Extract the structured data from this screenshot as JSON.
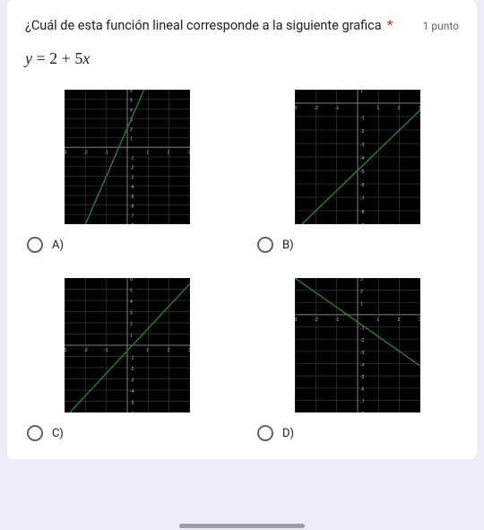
{
  "question": {
    "text": "¿Cuál de esta función lineal corresponde a la siguiente grafica",
    "required_marker": "*",
    "points_label": "1 punto",
    "equation_html": "y = 2 + 5x"
  },
  "graph_style": {
    "width": 140,
    "height": 150,
    "bg": "#000000",
    "grid_major": "#333333",
    "grid_minor": "#1f1f1f",
    "axis": "#808080",
    "label": "#bfbfbf",
    "line": "#2e7d32",
    "line_width": 1.4,
    "x_range": [
      -3,
      3
    ],
    "y_range_span": 10
  },
  "options": [
    {
      "key": "A",
      "label": "A)",
      "chart": {
        "type": "line",
        "x_range": [
          -3,
          3
        ],
        "y_range": [
          -8,
          6
        ],
        "y_axis_side": "center",
        "x_axis_pos": 0,
        "line_points": [
          [
            -3,
            -13
          ],
          [
            3,
            17
          ]
        ],
        "y_intercept": 2,
        "slope": 5
      }
    },
    {
      "key": "B",
      "label": "B)",
      "chart": {
        "type": "line",
        "x_range": [
          -3,
          3
        ],
        "y_range": [
          -9,
          1
        ],
        "y_axis_side": "center",
        "x_axis_pos": 0,
        "line_points": [
          [
            -3,
            -9.5
          ],
          [
            3,
            -0.5
          ]
        ],
        "y_intercept": -5,
        "slope": 1.5
      }
    },
    {
      "key": "C",
      "label": "C)",
      "chart": {
        "type": "line",
        "x_range": [
          -3,
          3
        ],
        "y_range": [
          -6,
          6
        ],
        "y_axis_side": "center",
        "x_axis_pos": 0,
        "line_points": [
          [
            -3,
            -6.5
          ],
          [
            3,
            5.5
          ]
        ],
        "y_intercept": -0.5,
        "slope": 2
      }
    },
    {
      "key": "D",
      "label": "D)",
      "chart": {
        "type": "line",
        "x_range": [
          -3,
          3
        ],
        "y_range": [
          -8,
          3
        ],
        "y_axis_side": "center",
        "x_axis_pos": 0,
        "line_points": [
          [
            -3,
            3
          ],
          [
            3,
            -4.2
          ]
        ],
        "y_intercept": -0.6,
        "slope": -1.2
      }
    }
  ]
}
